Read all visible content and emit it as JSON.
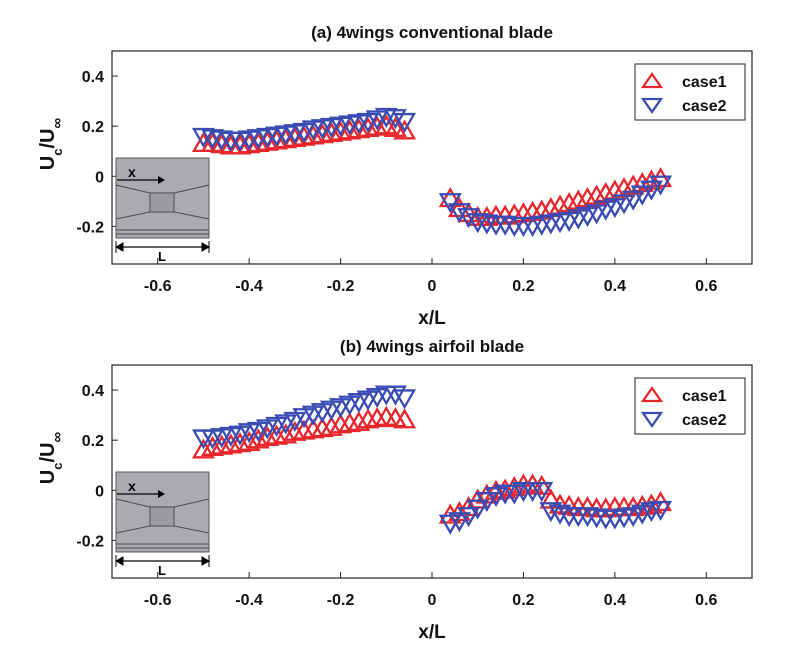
{
  "chart_data": [
    {
      "type": "scatter",
      "title": "(a) 4wings conventional blade",
      "xlabel": "x/L",
      "ylabel": {
        "main": "U",
        "sub1": "c",
        "slash": "/U",
        "sub2": "∞"
      },
      "xlim": [
        -0.7,
        0.7
      ],
      "ylim": [
        -0.35,
        0.5
      ],
      "xticks": [
        -0.6,
        -0.4,
        -0.2,
        0,
        0.2,
        0.4,
        0.6
      ],
      "xtick_labels": [
        "-0.6",
        "-0.4",
        "-0.2",
        "0",
        "0.2",
        "0.4",
        "0.6"
      ],
      "yticks": [
        -0.2,
        0,
        0.2,
        0.4
      ],
      "ytick_labels": [
        "-0.2",
        "0",
        "0.2",
        "0.4"
      ],
      "legend_position": "top-right",
      "inset": {
        "x_label": "x",
        "l_label": "L"
      },
      "series": [
        {
          "name": "case1",
          "marker": "triangle-up",
          "color": "#e8262b",
          "x": [
            -0.5,
            -0.48,
            -0.46,
            -0.44,
            -0.42,
            -0.4,
            -0.38,
            -0.36,
            -0.34,
            -0.32,
            -0.3,
            -0.28,
            -0.26,
            -0.24,
            -0.22,
            -0.2,
            -0.18,
            -0.16,
            -0.14,
            -0.12,
            -0.1,
            -0.08,
            -0.06,
            0.04,
            0.06,
            0.08,
            0.1,
            0.12,
            0.14,
            0.16,
            0.18,
            0.2,
            0.22,
            0.24,
            0.26,
            0.28,
            0.3,
            0.32,
            0.34,
            0.36,
            0.38,
            0.4,
            0.42,
            0.44,
            0.46,
            0.48,
            0.5
          ],
          "y": [
            0.13,
            0.13,
            0.125,
            0.12,
            0.12,
            0.125,
            0.13,
            0.135,
            0.14,
            0.145,
            0.15,
            0.155,
            0.16,
            0.165,
            0.17,
            0.175,
            0.18,
            0.185,
            0.19,
            0.195,
            0.2,
            0.19,
            0.18,
            -0.09,
            -0.13,
            -0.15,
            -0.165,
            -0.165,
            -0.16,
            -0.16,
            -0.155,
            -0.15,
            -0.145,
            -0.14,
            -0.13,
            -0.12,
            -0.11,
            -0.1,
            -0.09,
            -0.08,
            -0.07,
            -0.06,
            -0.05,
            -0.04,
            -0.03,
            -0.02,
            -0.01
          ]
        },
        {
          "name": "case2",
          "marker": "triangle-down",
          "color": "#3a4cb4",
          "x": [
            -0.5,
            -0.48,
            -0.46,
            -0.44,
            -0.42,
            -0.4,
            -0.38,
            -0.36,
            -0.34,
            -0.32,
            -0.3,
            -0.28,
            -0.26,
            -0.24,
            -0.22,
            -0.2,
            -0.18,
            -0.16,
            -0.14,
            -0.12,
            -0.1,
            -0.08,
            -0.06,
            0.04,
            0.06,
            0.08,
            0.1,
            0.12,
            0.14,
            0.16,
            0.18,
            0.2,
            0.22,
            0.24,
            0.26,
            0.28,
            0.3,
            0.32,
            0.34,
            0.36,
            0.38,
            0.4,
            0.42,
            0.44,
            0.46,
            0.48,
            0.5
          ],
          "y": [
            0.16,
            0.155,
            0.15,
            0.145,
            0.145,
            0.15,
            0.155,
            0.16,
            0.165,
            0.17,
            0.175,
            0.18,
            0.19,
            0.195,
            0.2,
            0.205,
            0.21,
            0.215,
            0.22,
            0.23,
            0.24,
            0.235,
            0.22,
            -0.1,
            -0.14,
            -0.16,
            -0.18,
            -0.185,
            -0.19,
            -0.19,
            -0.195,
            -0.195,
            -0.195,
            -0.19,
            -0.185,
            -0.18,
            -0.175,
            -0.165,
            -0.155,
            -0.145,
            -0.13,
            -0.12,
            -0.105,
            -0.09,
            -0.07,
            -0.05,
            -0.03
          ]
        }
      ]
    },
    {
      "type": "scatter",
      "title": "(b) 4wings airfoil blade",
      "xlabel": "x/L",
      "ylabel": {
        "main": "U",
        "sub1": "c",
        "slash": "/U",
        "sub2": "∞"
      },
      "xlim": [
        -0.7,
        0.7
      ],
      "ylim": [
        -0.35,
        0.5
      ],
      "xticks": [
        -0.6,
        -0.4,
        -0.2,
        0,
        0.2,
        0.4,
        0.6
      ],
      "xtick_labels": [
        "-0.6",
        "-0.4",
        "-0.2",
        "0",
        "0.2",
        "0.4",
        "0.6"
      ],
      "yticks": [
        -0.2,
        0,
        0.2,
        0.4
      ],
      "ytick_labels": [
        "-0.2",
        "0",
        "0.2",
        "0.4"
      ],
      "legend_position": "top-right",
      "inset": {
        "x_label": "x",
        "l_label": "L"
      },
      "series": [
        {
          "name": "case1",
          "marker": "triangle-up",
          "color": "#e8262b",
          "x": [
            -0.5,
            -0.48,
            -0.46,
            -0.44,
            -0.42,
            -0.4,
            -0.38,
            -0.36,
            -0.34,
            -0.32,
            -0.3,
            -0.28,
            -0.26,
            -0.24,
            -0.22,
            -0.2,
            -0.18,
            -0.16,
            -0.14,
            -0.12,
            -0.1,
            -0.08,
            -0.06,
            0.04,
            0.06,
            0.08,
            0.1,
            0.12,
            0.14,
            0.16,
            0.18,
            0.2,
            0.22,
            0.24,
            0.26,
            0.28,
            0.3,
            0.32,
            0.34,
            0.36,
            0.38,
            0.4,
            0.42,
            0.44,
            0.46,
            0.48,
            0.5
          ],
          "y": [
            0.16,
            0.17,
            0.175,
            0.18,
            0.185,
            0.19,
            0.2,
            0.21,
            0.215,
            0.22,
            0.23,
            0.235,
            0.24,
            0.245,
            0.25,
            0.26,
            0.265,
            0.27,
            0.28,
            0.285,
            0.29,
            0.285,
            0.28,
            -0.1,
            -0.09,
            -0.07,
            -0.04,
            -0.02,
            -0.005,
            0.0,
            0.01,
            0.02,
            0.02,
            0.015,
            -0.04,
            -0.06,
            -0.065,
            -0.07,
            -0.07,
            -0.075,
            -0.075,
            -0.07,
            -0.07,
            -0.07,
            -0.065,
            -0.06,
            -0.05
          ]
        },
        {
          "name": "case2",
          "marker": "triangle-down",
          "color": "#3a4cb4",
          "x": [
            -0.5,
            -0.48,
            -0.46,
            -0.44,
            -0.42,
            -0.4,
            -0.38,
            -0.36,
            -0.34,
            -0.32,
            -0.3,
            -0.28,
            -0.26,
            -0.24,
            -0.22,
            -0.2,
            -0.18,
            -0.16,
            -0.14,
            -0.12,
            -0.1,
            -0.08,
            -0.06,
            0.04,
            0.06,
            0.08,
            0.1,
            0.12,
            0.14,
            0.16,
            0.18,
            0.2,
            0.22,
            0.24,
            0.26,
            0.28,
            0.3,
            0.32,
            0.34,
            0.36,
            0.38,
            0.4,
            0.42,
            0.44,
            0.46,
            0.48,
            0.5
          ],
          "y": [
            0.21,
            0.21,
            0.215,
            0.22,
            0.225,
            0.235,
            0.24,
            0.25,
            0.26,
            0.27,
            0.28,
            0.295,
            0.305,
            0.315,
            0.325,
            0.335,
            0.345,
            0.355,
            0.365,
            0.375,
            0.385,
            0.385,
            0.37,
            -0.13,
            -0.12,
            -0.1,
            -0.07,
            -0.04,
            -0.02,
            -0.01,
            -0.01,
            0.0,
            0.0,
            0.0,
            -0.08,
            -0.09,
            -0.1,
            -0.1,
            -0.1,
            -0.105,
            -0.11,
            -0.11,
            -0.105,
            -0.1,
            -0.09,
            -0.08,
            -0.075
          ]
        }
      ]
    }
  ]
}
